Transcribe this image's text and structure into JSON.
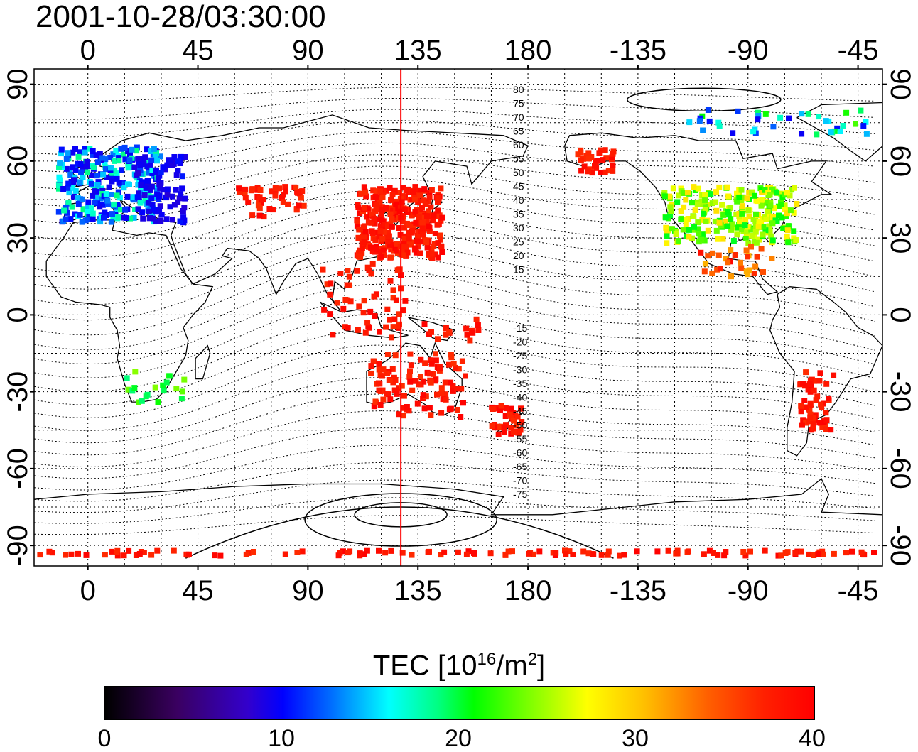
{
  "timestamp": "2001-10-28/03:30:00",
  "map": {
    "lon_ticks": [
      "0",
      "45",
      "90",
      "135",
      "180",
      "-135",
      "-90",
      "-45"
    ],
    "lat_ticks": [
      "90",
      "60",
      "30",
      "0",
      "-30",
      "-60",
      "-90"
    ],
    "contour_labels_north": [
      "80",
      "75",
      "70",
      "65",
      "60",
      "55",
      "50",
      "45",
      "40",
      "35",
      "30",
      "25",
      "20",
      "15"
    ],
    "contour_labels_south": [
      "-15",
      "-20",
      "-25",
      "-30",
      "-35",
      "-40",
      "-45",
      "-50",
      "-55",
      "-60",
      "-65",
      "-70",
      "-75"
    ],
    "marker_line_lon": 128,
    "colors": {
      "marker_line": "#ff0000",
      "high_tec": "#ff1a00"
    }
  },
  "colorbar": {
    "title_main": "TEC  [10",
    "title_sup1": "16",
    "title_mid": "/m",
    "title_sup2": "2",
    "title_end": "]",
    "min": 0,
    "max": 40,
    "ticks": [
      "0",
      "10",
      "20",
      "30",
      "40"
    ],
    "colormap": [
      "#000000",
      "#3300cc",
      "#0000ff",
      "#00ffff",
      "#00ff00",
      "#ffff00",
      "#ff8000",
      "#ff0000"
    ]
  }
}
